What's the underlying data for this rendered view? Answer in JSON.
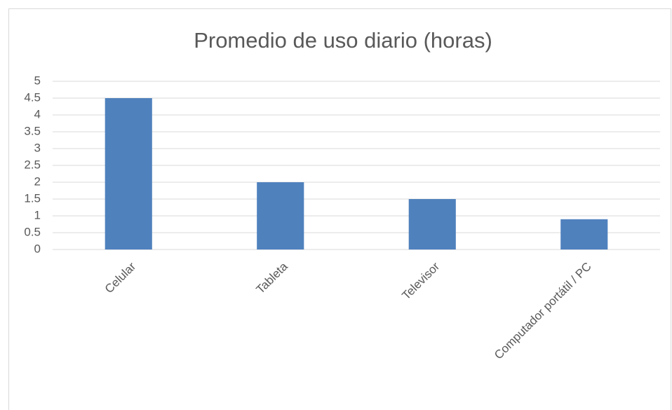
{
  "chart_data": {
    "type": "bar",
    "title": "Promedio de uso diario (horas)",
    "categories": [
      "Celular",
      "Tableta",
      "Televisor",
      "Computador portátil / PC"
    ],
    "values": [
      4.5,
      2,
      1.5,
      0.9
    ],
    "color": "#4f81bd",
    "ylim": [
      0,
      5
    ],
    "yticks": [
      0,
      0.5,
      1,
      1.5,
      2,
      2.5,
      3,
      3.5,
      4,
      4.5,
      5
    ],
    "grid": true
  }
}
